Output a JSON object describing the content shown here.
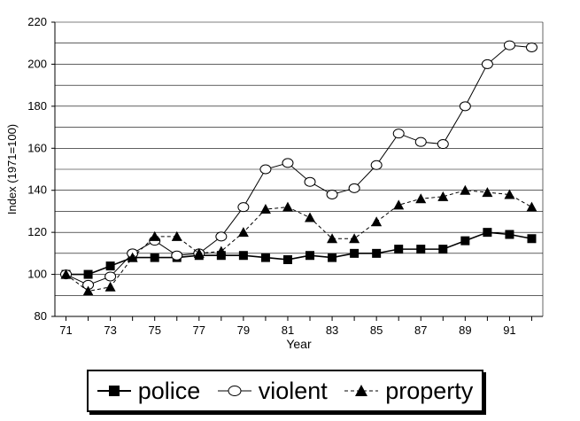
{
  "chart_data": {
    "type": "line",
    "title": "",
    "xlabel": "Year",
    "ylabel": "Index (1971=100)",
    "x": [
      71,
      72,
      73,
      74,
      75,
      76,
      77,
      78,
      79,
      80,
      81,
      82,
      83,
      84,
      85,
      86,
      87,
      88,
      89,
      90,
      91,
      92
    ],
    "xticks": [
      "71",
      "73",
      "75",
      "77",
      "79",
      "81",
      "83",
      "85",
      "87",
      "89",
      "91"
    ],
    "yticks": [
      "80",
      "100",
      "120",
      "140",
      "160",
      "180",
      "200",
      "220"
    ],
    "xlim": [
      70.5,
      92.5
    ],
    "ylim": [
      80,
      220
    ],
    "grid": true,
    "legend_position": "bottom",
    "series": [
      {
        "name": "police",
        "marker": "square-filled",
        "line": "solid",
        "values": [
          100,
          100,
          104,
          108,
          108,
          108,
          109,
          109,
          109,
          108,
          107,
          109,
          108,
          110,
          110,
          112,
          112,
          112,
          116,
          120,
          119,
          117
        ]
      },
      {
        "name": "violent",
        "marker": "circle-open",
        "line": "solid",
        "values": [
          100,
          95,
          99,
          110,
          116,
          109,
          110,
          118,
          132,
          150,
          153,
          144,
          138,
          141,
          152,
          167,
          163,
          162,
          180,
          200,
          209,
          208
        ]
      },
      {
        "name": "property",
        "marker": "triangle-filled",
        "line": "dashed",
        "values": [
          100,
          92,
          94,
          108,
          118,
          118,
          110,
          111,
          120,
          131,
          132,
          127,
          117,
          117,
          125,
          133,
          136,
          137,
          140,
          139,
          138,
          132
        ]
      }
    ]
  }
}
